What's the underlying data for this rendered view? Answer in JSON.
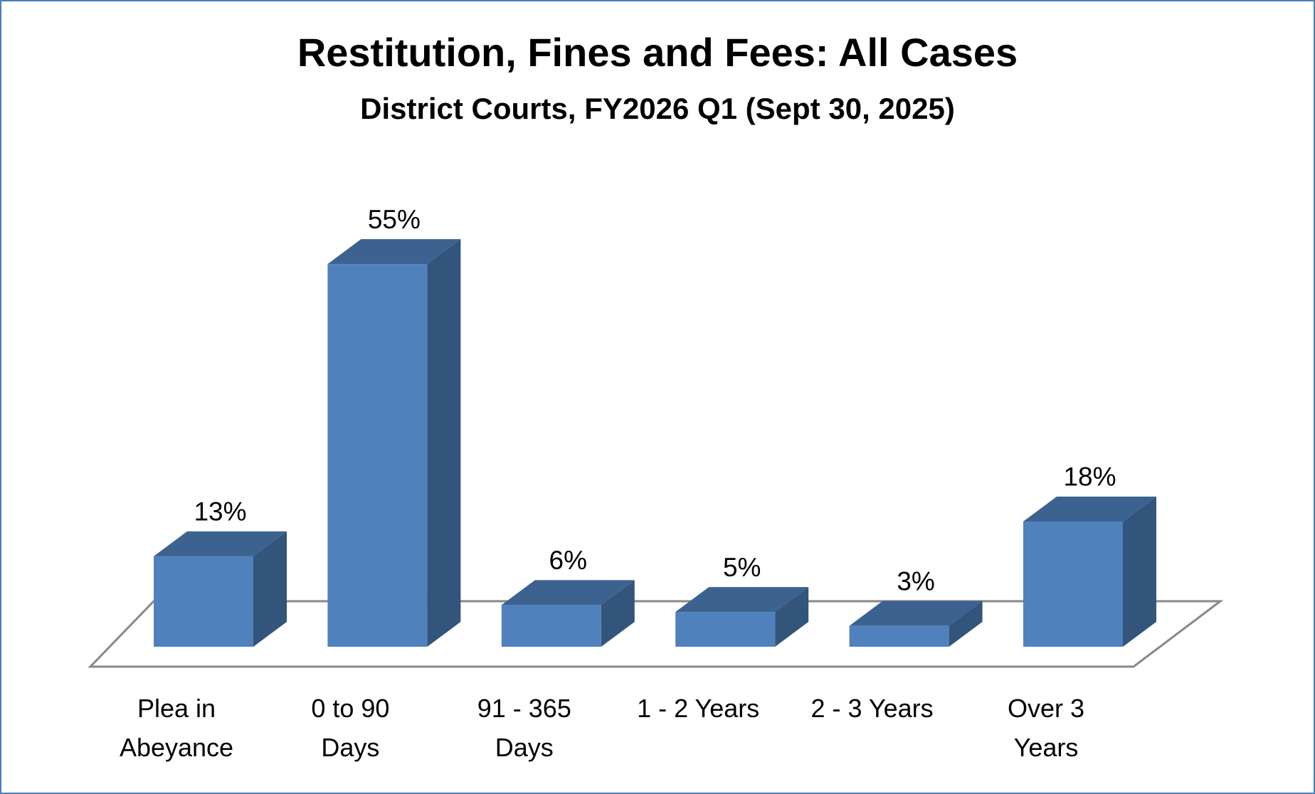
{
  "chart_data": {
    "type": "bar3d",
    "title": "Restitution, Fines and Fees: All Cases",
    "subtitle": "District Courts, FY2026 Q1 (Sept 30, 2025)",
    "categories": [
      "Plea in Abeyance",
      "0 to 90 Days",
      "91 - 365 Days",
      "1 - 2 Years",
      "2 - 3 Years",
      "Over 3 Years"
    ],
    "values": [
      13,
      55,
      6,
      5,
      3,
      18
    ],
    "value_labels": [
      "13%",
      "55%",
      "6%",
      "5%",
      "3%",
      "18%"
    ],
    "color": "#4f81bd"
  }
}
